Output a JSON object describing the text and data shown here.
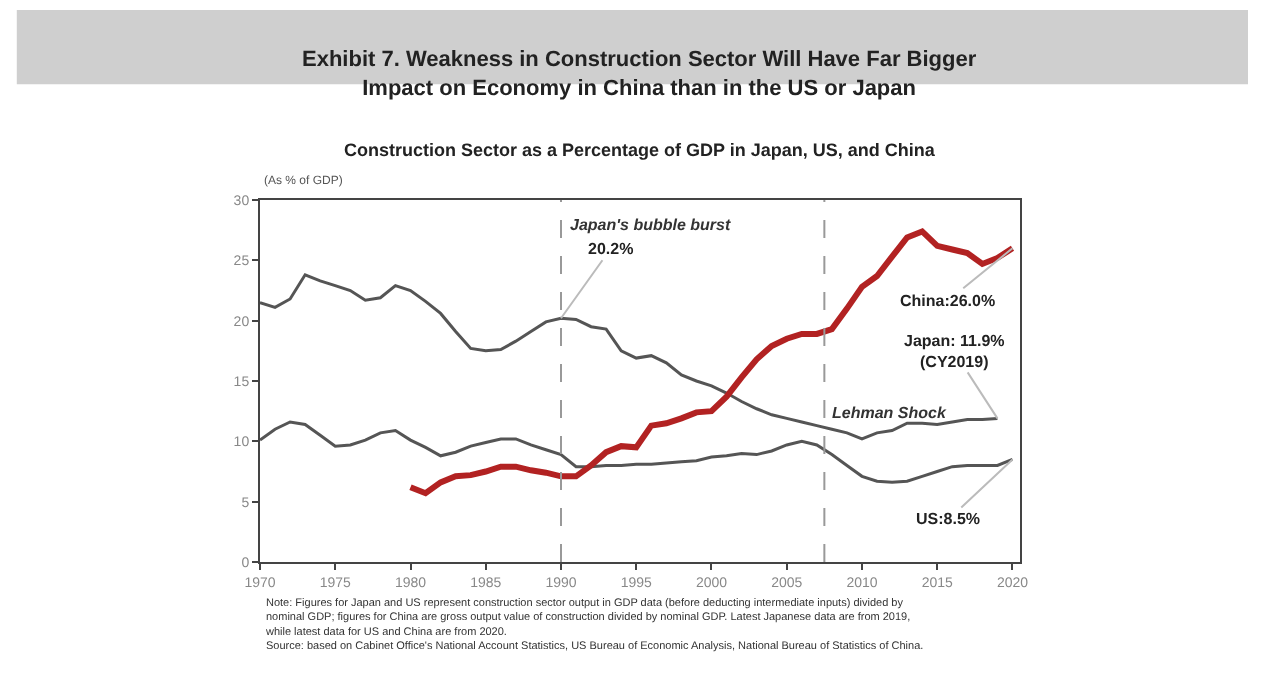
{
  "chart_data": {
    "type": "line",
    "title": "Exhibit 7. Weakness in Construction Sector Will Have Far Bigger\nImpact on Economy in China than in the US or Japan",
    "subtitle": "Construction Sector as a Percentage of GDP in Japan, US, and China",
    "ylabel": "(As % of GDP)",
    "x": [
      1970,
      1971,
      1972,
      1973,
      1974,
      1975,
      1976,
      1977,
      1978,
      1979,
      1980,
      1981,
      1982,
      1983,
      1984,
      1985,
      1986,
      1987,
      1988,
      1989,
      1990,
      1991,
      1992,
      1993,
      1994,
      1995,
      1996,
      1997,
      1998,
      1999,
      2000,
      2001,
      2002,
      2003,
      2004,
      2005,
      2006,
      2007,
      2008,
      2009,
      2010,
      2011,
      2012,
      2013,
      2014,
      2015,
      2016,
      2017,
      2018,
      2019,
      2020
    ],
    "series": [
      {
        "color": "#555555",
        "values": [
          21.5,
          21.1,
          21.8,
          23.8,
          23.3,
          22.9,
          22.5,
          21.7,
          21.9,
          22.9,
          22.5,
          21.6,
          20.6,
          19.1,
          17.7,
          17.5,
          17.6,
          18.3,
          19.1,
          19.9,
          20.2,
          20.1,
          19.5,
          19.3,
          17.5,
          16.9,
          17.1,
          16.5,
          15.5,
          15.0,
          14.6,
          14.0,
          13.3,
          12.7,
          12.2,
          11.9,
          11.6,
          11.3,
          11.0,
          10.7,
          10.2,
          10.7,
          10.9,
          11.5,
          11.5,
          11.4,
          11.6,
          11.8,
          11.8,
          11.9,
          null
        ]
      },
      {
        "color": "#555555",
        "values": [
          10.1,
          11.0,
          11.6,
          11.4,
          10.5,
          9.6,
          9.7,
          10.1,
          10.7,
          10.9,
          10.1,
          9.5,
          8.8,
          9.1,
          9.6,
          9.9,
          10.2,
          10.2,
          9.7,
          9.3,
          8.9,
          7.9,
          7.9,
          8.0,
          8.0,
          8.1,
          8.1,
          8.2,
          8.3,
          8.4,
          8.7,
          8.8,
          9.0,
          8.9,
          9.2,
          9.7,
          10.0,
          9.7,
          8.9,
          8.0,
          7.1,
          6.7,
          6.6,
          6.7,
          7.1,
          7.5,
          7.9,
          8.0,
          8.0,
          8.0,
          8.5
        ]
      },
      {
        "color": "#b22222",
        "values": [
          null,
          null,
          null,
          null,
          null,
          null,
          null,
          null,
          null,
          null,
          6.2,
          5.7,
          6.6,
          7.1,
          7.2,
          7.5,
          7.9,
          7.9,
          7.6,
          7.4,
          7.1,
          7.1,
          8.0,
          9.1,
          9.6,
          9.5,
          11.3,
          11.5,
          11.9,
          12.4,
          12.5,
          13.7,
          15.3,
          16.8,
          17.9,
          18.5,
          18.9,
          18.9,
          19.3,
          21.0,
          22.8,
          23.7,
          25.3,
          26.9,
          27.4,
          26.2,
          25.9,
          25.6,
          24.7,
          25.2,
          26.0
        ]
      }
    ],
    "xlim": [
      1970,
      2020.5
    ],
    "xticks": [
      1970,
      1975,
      1980,
      1985,
      1990,
      1995,
      2000,
      2005,
      2010,
      2015,
      2020
    ],
    "ylim": [
      0,
      30
    ],
    "yticks": [
      0,
      5,
      10,
      15,
      20,
      25,
      30
    ],
    "line_style": "solid",
    "ref_lines": [
      {
        "axis": "x",
        "value": 1990,
        "label": "Japan's bubble burst",
        "line_style": "dashed",
        "color": "#999999"
      },
      {
        "axis": "x",
        "value": 2007.5,
        "label": "Lehman Shock",
        "line_style": "dashed",
        "color": "#999999"
      }
    ],
    "annotations": [
      {
        "text": "20.2%",
        "x": 1990,
        "y": 20.2
      },
      {
        "text": "China:26.0%",
        "x": 2020,
        "y": 26.0
      },
      {
        "text": "Japan: 11.9%\n(CY2019)",
        "x": 2019,
        "y": 11.9
      },
      {
        "text": "US:8.5%",
        "x": 2020,
        "y": 8.5
      },
      "Note: Figures for Japan and US represent construction sector output in GDP data (before deducting intermediate inputs) divided by\nnominal GDP; figures for China are gross output value of construction divided by nominal GDP. Latest Japanese data are from 2019,\nwhile latest data for US and China are from 2020.\nSource: based on Cabinet Office's National Account Statistics, US Bureau of Economic Analysis, National Bureau of Statistics of China."
    ]
  }
}
